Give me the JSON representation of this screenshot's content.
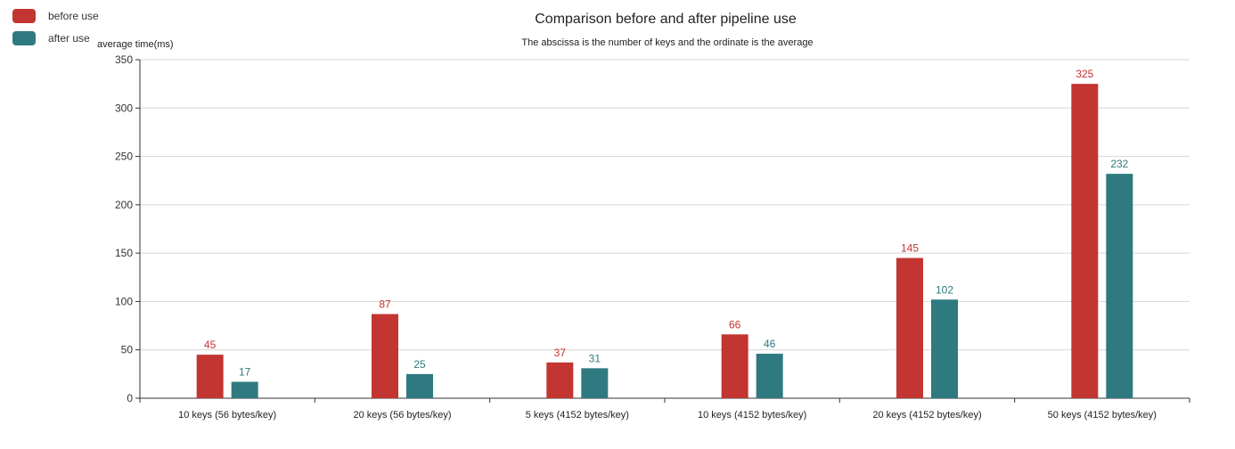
{
  "chart_data": {
    "type": "bar",
    "title": "Comparison before and after pipeline use",
    "subtitle": "The abscissa is the number of keys and the ordinate is the average",
    "ylabel": "average time(ms)",
    "xlabel": "",
    "ylim": [
      0,
      350
    ],
    "yticks": [
      0,
      50,
      100,
      150,
      200,
      250,
      300,
      350
    ],
    "grid": true,
    "legend_placement": "top-left",
    "categories": [
      "10 keys (56 bytes/key)",
      "20 keys (56 bytes/key)",
      "5 keys (4152 bytes/key)",
      "10 keys (4152 bytes/key)",
      "20 keys (4152 bytes/key)",
      "50 keys (4152 bytes/key)"
    ],
    "series": [
      {
        "name": "before use",
        "color": "#c23531",
        "values": [
          45,
          87,
          37,
          66,
          145,
          325
        ]
      },
      {
        "name": "after use",
        "color": "#2f7a80",
        "values": [
          17,
          25,
          31,
          46,
          102,
          232
        ]
      }
    ]
  }
}
